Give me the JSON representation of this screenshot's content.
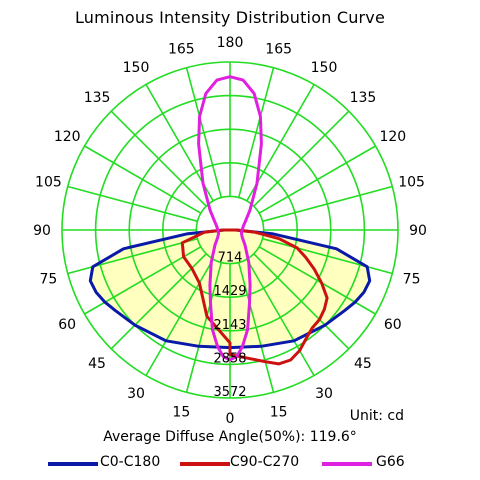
{
  "chart_data": {
    "type": "polar",
    "title": "Luminous Intensity Distribution Curve",
    "angle_labels": [
      "180",
      "165",
      "150",
      "135",
      "120",
      "105",
      "90",
      "75",
      "60",
      "45",
      "30",
      "15",
      "0",
      "15",
      "30",
      "45",
      "60",
      "75",
      "90",
      "105",
      "120",
      "135",
      "150",
      "165"
    ],
    "radial_labels": [
      "714",
      "1429",
      "2143",
      "2858",
      "3572"
    ],
    "radial_max": 3572,
    "radial_unit": "cd",
    "grid": true,
    "series": [
      {
        "name": "C0-C180",
        "color": "#0a1aa8",
        "angles_deg": [
          0,
          15,
          30,
          45,
          55,
          60,
          65,
          70,
          75,
          80,
          85,
          90
        ],
        "values_cd": [
          2500,
          2560,
          2720,
          2860,
          2980,
          3070,
          3140,
          3160,
          3020,
          2300,
          900,
          120
        ]
      },
      {
        "name": "C90-C270",
        "color": "#cc1111",
        "left_angles_deg": [
          0,
          15,
          30,
          45,
          60,
          75,
          85,
          90
        ],
        "left_values_cd": [
          2400,
          1900,
          1300,
          1150,
          1140,
          1050,
          550,
          150
        ],
        "right_angles_deg": [
          0,
          15,
          20,
          25,
          30,
          35,
          40,
          45,
          50,
          55,
          60,
          65,
          70,
          75,
          80,
          85,
          90
        ],
        "right_values_cd": [
          2650,
          2900,
          3030,
          3050,
          2960,
          2820,
          2720,
          2690,
          2620,
          2520,
          2250,
          1980,
          1720,
          1480,
          1060,
          520,
          150
        ]
      },
      {
        "name": "G66",
        "color": "#e020e0",
        "angles_deg": [
          0,
          3,
          6,
          10,
          15,
          20,
          30,
          45,
          60,
          75,
          90,
          105,
          120,
          135,
          150,
          160,
          165,
          170,
          175,
          180
        ],
        "values_cd": [
          2760,
          2700,
          2500,
          2150,
          1600,
          1250,
          800,
          450,
          300,
          250,
          260,
          290,
          380,
          600,
          1150,
          1950,
          2500,
          2950,
          3200,
          3260
        ]
      }
    ]
  },
  "unit_text": "Unit: cd",
  "avg_text": "Average Diffuse Angle(50%): 119.6°",
  "colors": {
    "grid": "#22dd22",
    "fill": "#ffffc0",
    "background": "#ffffff"
  }
}
